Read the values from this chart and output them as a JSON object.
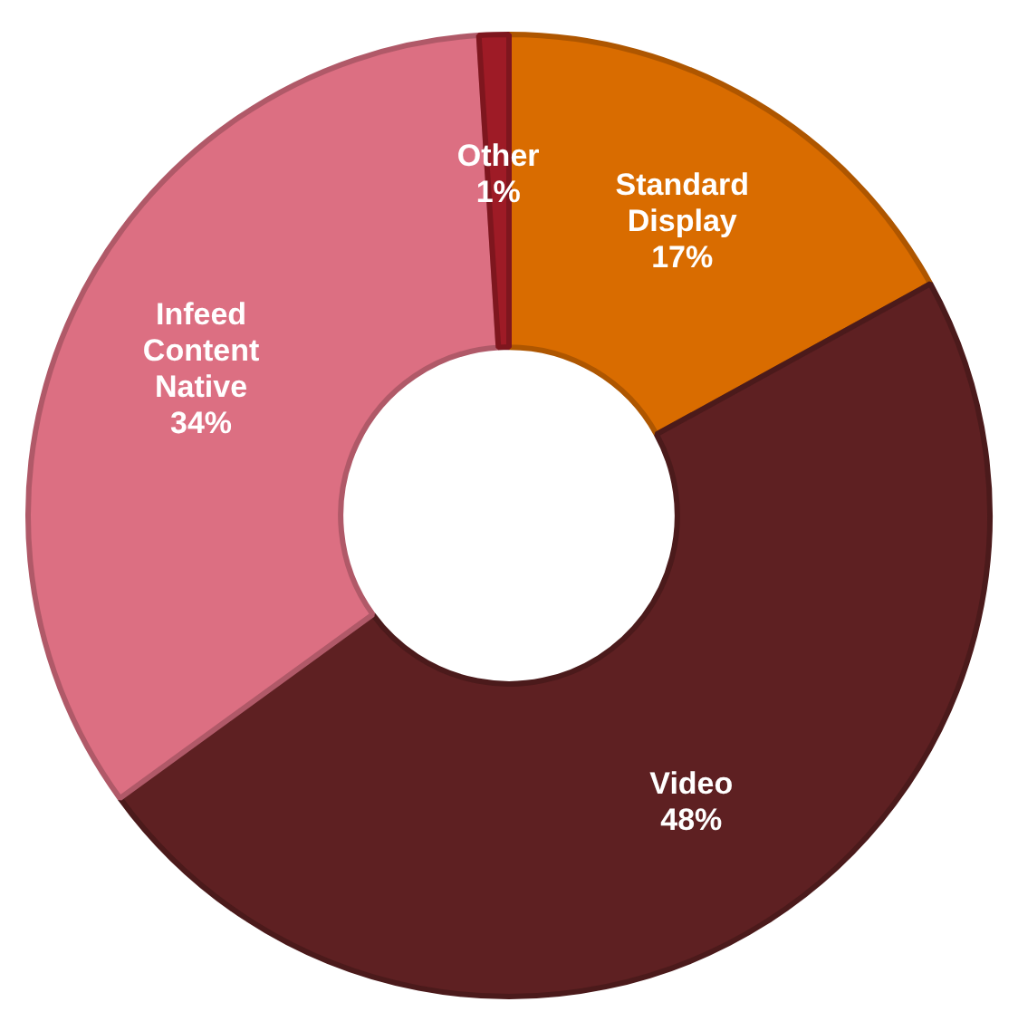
{
  "chart_data": {
    "type": "donut",
    "categories": [
      "Standard Display",
      "Video",
      "Infeed Content Native",
      "Other"
    ],
    "values": [
      17,
      48,
      34,
      1
    ],
    "colors": [
      "#d96c00",
      "#5e2022",
      "#dc6f82",
      "#9e1b26"
    ],
    "value_labels": [
      "17%",
      "48%",
      "34%",
      "1%"
    ],
    "legend": false
  }
}
